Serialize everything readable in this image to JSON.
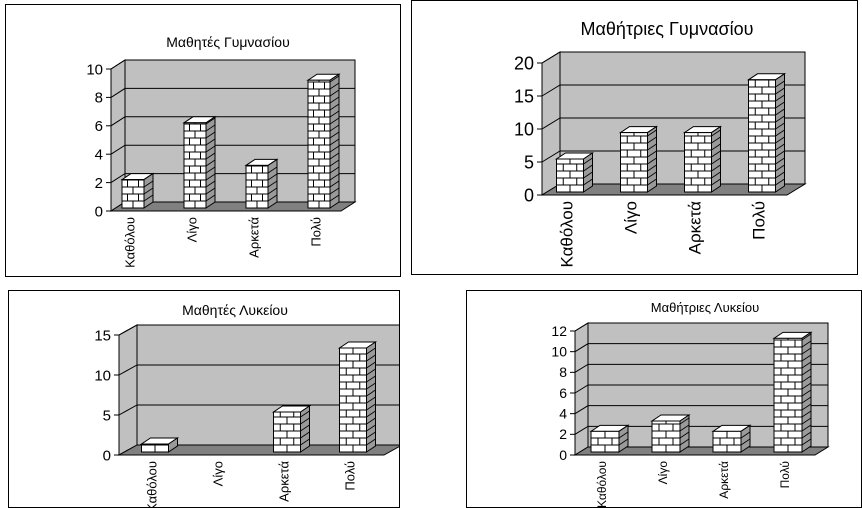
{
  "colors": {
    "wall": "#c0c0c0",
    "floor": "#808080",
    "grid": "#000000",
    "brick": "#ffffff",
    "brick_shadow": "#9a9a9a"
  },
  "chart_data": [
    {
      "type": "bar",
      "title": "Μαθητές Γυμνασίου",
      "categories": [
        "Καθόλου",
        "Λίγο",
        "Αρκετά",
        "Πολύ"
      ],
      "values": [
        2,
        6,
        3,
        9
      ],
      "ylim": [
        0,
        10
      ],
      "yticks": [
        0,
        2,
        4,
        6,
        8,
        10
      ],
      "grid": true
    },
    {
      "type": "bar",
      "title": "Μαθήτριες Γυμνασίου",
      "categories": [
        "Καθόλου",
        "Λίγο",
        "Αρκετά",
        "Πολύ"
      ],
      "values": [
        5,
        9,
        9,
        17
      ],
      "ylim": [
        0,
        20
      ],
      "yticks": [
        0,
        5,
        10,
        15,
        20
      ],
      "grid": true
    },
    {
      "type": "bar",
      "title": "Μαθητές Λυκείου",
      "categories": [
        "Καθόλου",
        "Λίγο",
        "Αρκετά",
        "Πολύ"
      ],
      "values": [
        1,
        0,
        5,
        13
      ],
      "ylim": [
        0,
        15
      ],
      "yticks": [
        0,
        5,
        10,
        15
      ],
      "grid": true
    },
    {
      "type": "bar",
      "title": "Μαθήτριες Λυκείου",
      "categories": [
        "Καθόλου",
        "Λίγο",
        "Αρκετά",
        "Πολύ"
      ],
      "values": [
        2,
        3,
        2,
        11
      ],
      "ylim": [
        0,
        12
      ],
      "yticks": [
        0,
        2,
        4,
        6,
        8,
        10,
        12
      ],
      "grid": true
    }
  ]
}
